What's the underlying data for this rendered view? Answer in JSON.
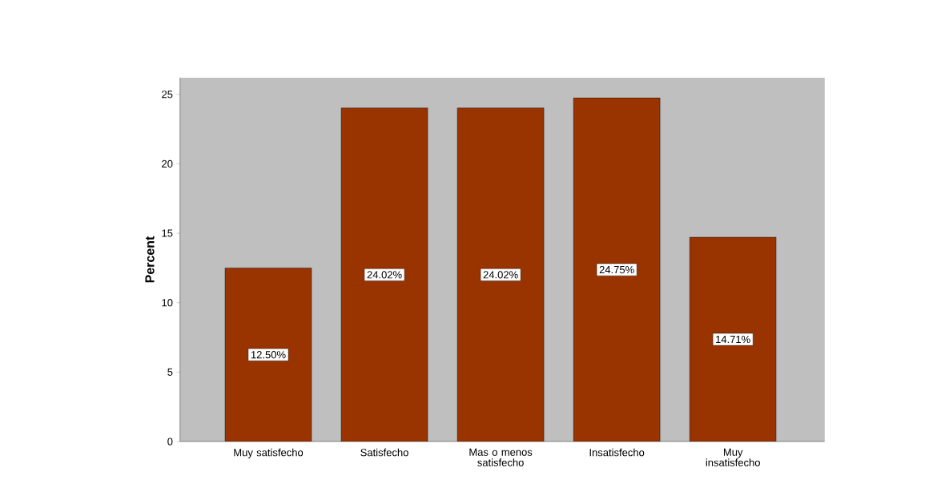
{
  "chart_data": {
    "type": "bar",
    "ylabel": "Percent",
    "categories": [
      "Muy satisfecho",
      "Satisfecho",
      "Mas o menos satisfecho",
      "Insatisfecho",
      "Muy insatisfecho"
    ],
    "values": [
      12.5,
      24.02,
      24.02,
      24.75,
      14.71
    ],
    "value_labels": [
      "12.50%",
      "24.02%",
      "24.02%",
      "24.75%",
      "14.71%"
    ],
    "color": "#993300",
    "ylim": [
      0,
      26.2
    ],
    "yticks": [
      0,
      5,
      10,
      15,
      20,
      25
    ]
  }
}
